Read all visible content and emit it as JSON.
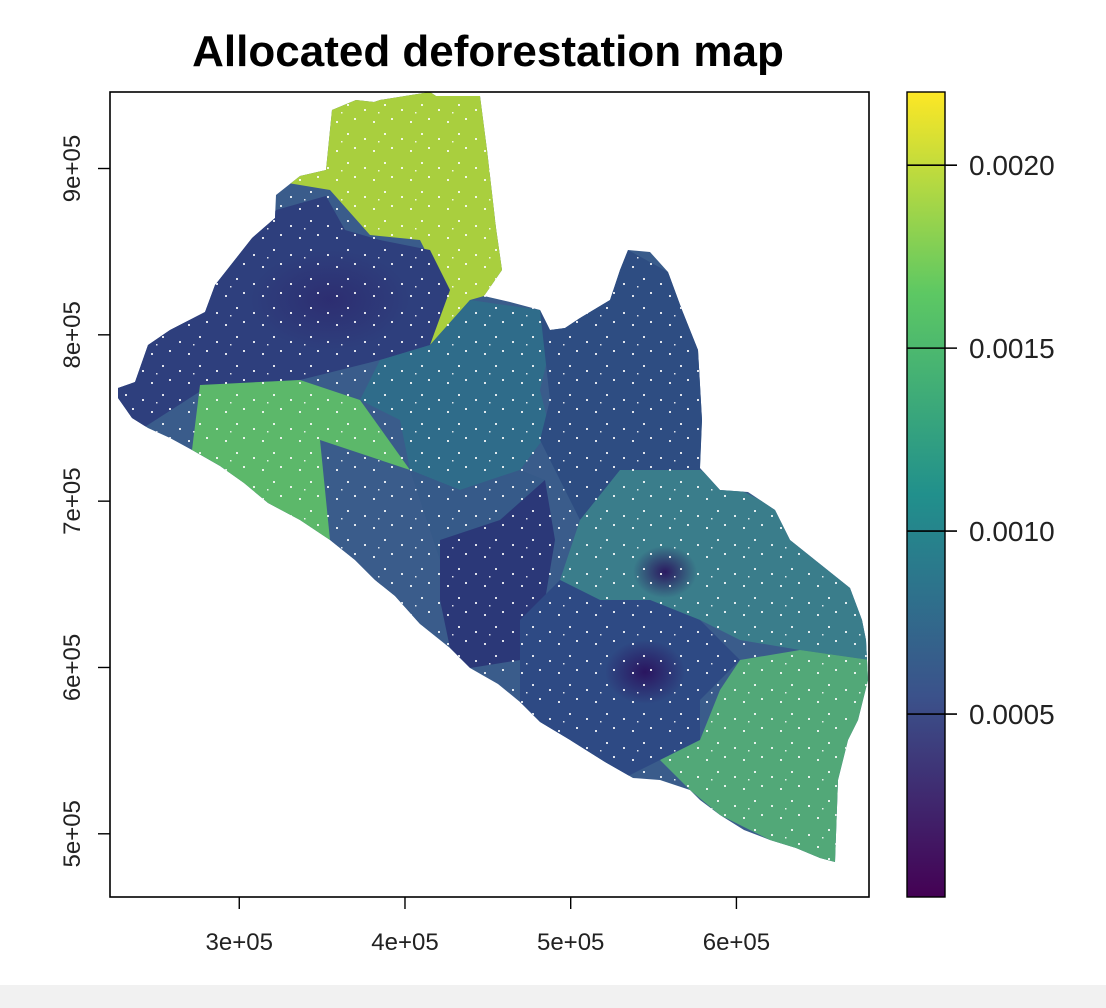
{
  "map": {
    "title": "Allocated deforestation map",
    "x_axis": {
      "ticks": [
        {
          "value": 300000,
          "label": "3e+05"
        },
        {
          "value": 400000,
          "label": "4e+05"
        },
        {
          "value": 500000,
          "label": "5e+05"
        },
        {
          "value": 600000,
          "label": "6e+05"
        }
      ],
      "range": [
        222000,
        680000
      ]
    },
    "y_axis": {
      "ticks": [
        {
          "value": 500000,
          "label": "5e+05"
        },
        {
          "value": 600000,
          "label": "6e+05"
        },
        {
          "value": 700000,
          "label": "7e+05"
        },
        {
          "value": 800000,
          "label": "8e+05"
        },
        {
          "value": 900000,
          "label": "9e+05"
        }
      ],
      "range": [
        462000,
        946000
      ]
    },
    "legend": {
      "range": [
        0.0,
        0.0022
      ],
      "ticks": [
        {
          "value": 0.0005,
          "label": "0.0005"
        },
        {
          "value": 0.001,
          "label": "0.0010"
        },
        {
          "value": 0.0015,
          "label": "0.0015"
        },
        {
          "value": 0.002,
          "label": "0.0020"
        }
      ],
      "palette": [
        "#440154",
        "#3b528b",
        "#21908c",
        "#5dc863",
        "#fde725"
      ]
    },
    "region_colors": {
      "north_lobe": "#a9cf3e",
      "northwest": "#2e3f7d",
      "west_coast": "#5cb86a",
      "coastal_west": "#3a5c8b",
      "central_north": "#2f6c8a",
      "northeast": "#2e4d82",
      "central": "#365a89",
      "central_south": "#2b3878",
      "southeast_upper": "#3a7d8b",
      "southeast_lower": "#52a878",
      "south_central": "#2e4a84"
    }
  }
}
